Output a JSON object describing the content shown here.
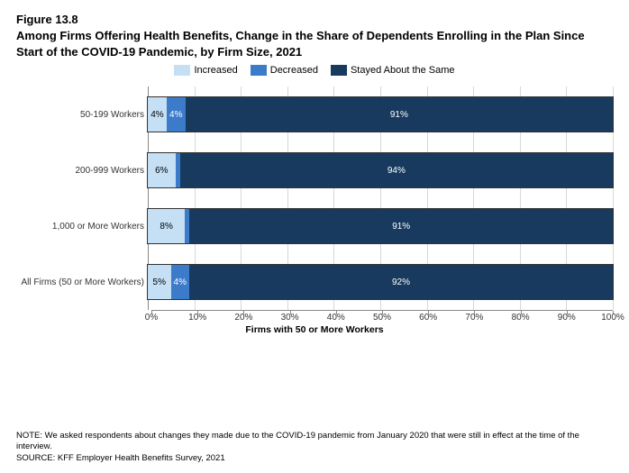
{
  "figure_number": "Figure 13.8",
  "title": "Among Firms Offering Health Benefits, Change in the Share of Dependents Enrolling in the Plan Since Start of the COVID-19 Pandemic, by Firm Size, 2021",
  "legend": {
    "items": [
      {
        "label": "Increased",
        "color": "#c5e0f5"
      },
      {
        "label": "Decreased",
        "color": "#3c7bc9"
      },
      {
        "label": "Stayed About the Same",
        "color": "#173a5e"
      }
    ]
  },
  "chart": {
    "type": "stacked_bar_horizontal",
    "x_axis": {
      "title": "Firms with 50 or More Workers",
      "ticks": [
        "0%",
        "10%",
        "20%",
        "30%",
        "40%",
        "50%",
        "60%",
        "70%",
        "80%",
        "90%",
        "100%"
      ],
      "min": 0,
      "max": 100
    },
    "categories": [
      {
        "label": "50-199 Workers",
        "segments": [
          {
            "value": 4,
            "display": "4%",
            "color": "#c5e0f5",
            "text_color": "light"
          },
          {
            "value": 4,
            "display": "4%",
            "color": "#3c7bc9",
            "text_color": "white"
          },
          {
            "value": 91,
            "display": "91%",
            "color": "#173a5e",
            "text_color": "white"
          }
        ]
      },
      {
        "label": "200-999 Workers",
        "segments": [
          {
            "value": 6,
            "display": "6%",
            "color": "#c5e0f5",
            "text_color": "light"
          },
          {
            "value": 1,
            "display": "",
            "color": "#3c7bc9",
            "text_color": "white"
          },
          {
            "value": 94,
            "display": "94%",
            "color": "#173a5e",
            "text_color": "white"
          }
        ]
      },
      {
        "label": "1,000 or More Workers",
        "segments": [
          {
            "value": 8,
            "display": "8%",
            "color": "#c5e0f5",
            "text_color": "light"
          },
          {
            "value": 1,
            "display": "",
            "color": "#3c7bc9",
            "text_color": "white"
          },
          {
            "value": 91,
            "display": "91%",
            "color": "#173a5e",
            "text_color": "white"
          }
        ]
      },
      {
        "label": "All Firms (50 or More Workers)",
        "segments": [
          {
            "value": 5,
            "display": "5%",
            "color": "#c5e0f5",
            "text_color": "light"
          },
          {
            "value": 4,
            "display": "4%",
            "color": "#3c7bc9",
            "text_color": "white"
          },
          {
            "value": 92,
            "display": "92%",
            "color": "#173a5e",
            "text_color": "white"
          }
        ]
      }
    ],
    "grid_color": "#d8d8d8",
    "background": "#ffffff"
  },
  "note": "NOTE: We asked respondents about changes they made due to the COVID-19 pandemic from January 2020 that were still in effect at the time of the interview.",
  "source": "SOURCE: KFF Employer Health Benefits Survey, 2021"
}
